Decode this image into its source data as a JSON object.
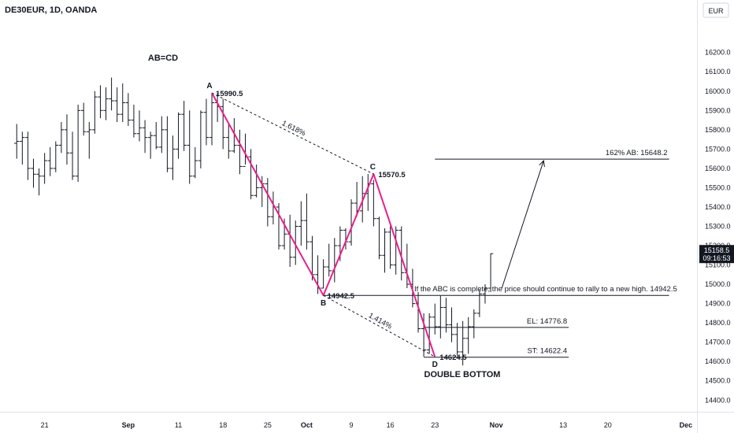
{
  "header": {
    "symbol": "DE30EUR, 1D, OANDA",
    "currency": "EUR"
  },
  "price_tag": {
    "price": "15158.5",
    "countdown": "09:16:53",
    "value": 15158.5,
    "color": "#131722"
  },
  "colors": {
    "pattern_line": "#e91e8c",
    "bar": "#131722",
    "grid_axis": "#e0e3eb",
    "text": "#131722"
  },
  "chart_data": {
    "type": "ohlc",
    "ylim": [
      14340,
      16370
    ],
    "xlim": [
      -3,
      122
    ],
    "y_ticks": [
      14400,
      14500,
      14600,
      14700,
      14800,
      14900,
      15000,
      15100,
      15200,
      15300,
      15400,
      15500,
      15600,
      15700,
      15800,
      15900,
      16000,
      16100,
      16200
    ],
    "y_tick_labels": [
      "14400.0",
      "14500.0",
      "14600.0",
      "14700.0",
      "14800.0",
      "14900.0",
      "15000.0",
      "15100.0",
      "15200.0",
      "15300.0",
      "15400.0",
      "15500.0",
      "15600.0",
      "15700.0",
      "15800.0",
      "15900.0",
      "16000.0",
      "16100.0",
      "16200.0"
    ],
    "x_ticks": [
      {
        "label": "21",
        "i": 5
      },
      {
        "label": "Sep",
        "i": 20
      },
      {
        "label": "11",
        "i": 29
      },
      {
        "label": "18",
        "i": 37
      },
      {
        "label": "25",
        "i": 45
      },
      {
        "label": "Oct",
        "i": 52
      },
      {
        "label": "9",
        "i": 60
      },
      {
        "label": "16",
        "i": 67
      },
      {
        "label": "23",
        "i": 75
      },
      {
        "label": "Nov",
        "i": 86
      },
      {
        "label": "13",
        "i": 98
      },
      {
        "label": "20",
        "i": 106
      },
      {
        "label": "Dec",
        "i": 120
      }
    ],
    "ohlc": [
      [
        15730,
        15830,
        15650,
        15740
      ],
      [
        15740,
        15790,
        15620,
        15760
      ],
      [
        15760,
        15790,
        15540,
        15600
      ],
      [
        15600,
        15650,
        15500,
        15570
      ],
      [
        15570,
        15600,
        15460,
        15560
      ],
      [
        15560,
        15680,
        15520,
        15640
      ],
      [
        15640,
        15710,
        15560,
        15600
      ],
      [
        15600,
        15740,
        15580,
        15720
      ],
      [
        15720,
        15840,
        15680,
        15800
      ],
      [
        15800,
        15880,
        15620,
        15680
      ],
      [
        15680,
        15790,
        15540,
        15560
      ],
      [
        15560,
        15930,
        15530,
        15900
      ],
      [
        15900,
        15940,
        15770,
        15790
      ],
      [
        15790,
        15840,
        15650,
        15800
      ],
      [
        15800,
        16000,
        15780,
        15970
      ],
      [
        15970,
        16030,
        15860,
        15900
      ],
      [
        15900,
        16020,
        15850,
        15960
      ],
      [
        15960,
        16070,
        15900,
        15950
      ],
      [
        15950,
        16020,
        15840,
        15880
      ],
      [
        15880,
        16040,
        15840,
        15940
      ],
      [
        15940,
        15990,
        15820,
        15850
      ],
      [
        15850,
        15930,
        15760,
        15780
      ],
      [
        15780,
        15900,
        15740,
        15810
      ],
      [
        15810,
        15850,
        15680,
        15760
      ],
      [
        15760,
        15790,
        15650,
        15770
      ],
      [
        15770,
        15840,
        15700,
        15710
      ],
      [
        15710,
        15870,
        15680,
        15800
      ],
      [
        15800,
        15870,
        15580,
        15600
      ],
      [
        15600,
        15770,
        15540,
        15700
      ],
      [
        15700,
        15890,
        15650,
        15880
      ],
      [
        15880,
        15950,
        15690,
        15720
      ],
      [
        15720,
        15900,
        15520,
        15560
      ],
      [
        15560,
        15710,
        15550,
        15640
      ],
      [
        15640,
        15900,
        15600,
        15890
      ],
      [
        15890,
        15960,
        15720,
        15760
      ],
      [
        15760,
        15990,
        15720,
        15940
      ],
      [
        15940,
        15990,
        15840,
        15920
      ],
      [
        15920,
        15960,
        15700,
        15760
      ],
      [
        15760,
        15830,
        15650,
        15690
      ],
      [
        15690,
        15860,
        15680,
        15720
      ],
      [
        15720,
        15800,
        15570,
        15610
      ],
      [
        15610,
        15780,
        15620,
        15660
      ],
      [
        15660,
        15700,
        15440,
        15460
      ],
      [
        15460,
        15620,
        15450,
        15500
      ],
      [
        15500,
        15560,
        15400,
        15520
      ],
      [
        15520,
        15550,
        15300,
        15350
      ],
      [
        15350,
        15480,
        15310,
        15400
      ],
      [
        15400,
        15420,
        15180,
        15200
      ],
      [
        15200,
        15340,
        15180,
        15260
      ],
      [
        15260,
        15360,
        15090,
        15140
      ],
      [
        15140,
        15330,
        15100,
        15300
      ],
      [
        15300,
        15430,
        15200,
        15330
      ],
      [
        15330,
        15470,
        15180,
        15220
      ],
      [
        15220,
        15250,
        15020,
        15050
      ],
      [
        15050,
        15150,
        14950,
        14980
      ],
      [
        14980,
        15130,
        14980,
        15090
      ],
      [
        15090,
        15210,
        15040,
        15070
      ],
      [
        15070,
        15240,
        15010,
        15200
      ],
      [
        15200,
        15300,
        15120,
        15280
      ],
      [
        15280,
        15290,
        15180,
        15220
      ],
      [
        15220,
        15440,
        15200,
        15420
      ],
      [
        15420,
        15530,
        15350,
        15380
      ],
      [
        15380,
        15560,
        15320,
        15470
      ],
      [
        15470,
        15571,
        15380,
        15520
      ],
      [
        15520,
        15540,
        15300,
        15340
      ],
      [
        15340,
        15350,
        15130,
        15150
      ],
      [
        15150,
        15290,
        15060,
        15270
      ],
      [
        15270,
        15300,
        15080,
        15100
      ],
      [
        15100,
        15300,
        15050,
        15280
      ],
      [
        15280,
        15300,
        15020,
        15060
      ],
      [
        15060,
        15210,
        14980,
        15000
      ],
      [
        15000,
        15080,
        14880,
        14900
      ],
      [
        14900,
        14960,
        14750,
        14770
      ],
      [
        14770,
        14850,
        14625,
        14660
      ],
      [
        14660,
        14850,
        14640,
        14830
      ],
      [
        14830,
        14900,
        14740,
        14780
      ],
      [
        14780,
        14940,
        14720,
        14880
      ],
      [
        14880,
        14930,
        14750,
        14790
      ],
      [
        14790,
        14880,
        14700,
        14740
      ],
      [
        14740,
        14800,
        14630,
        14650
      ],
      [
        14650,
        14810,
        14580,
        14720
      ],
      [
        14720,
        14830,
        14640,
        14780
      ],
      [
        14780,
        14870,
        14720,
        14850
      ],
      [
        14850,
        14970,
        14830,
        14950
      ],
      [
        14950,
        15000,
        14900,
        14980
      ],
      [
        14980,
        15160,
        14960,
        15158.5
      ]
    ],
    "pattern": {
      "title": "AB=CD",
      "points": [
        {
          "name": "A",
          "i": 35,
          "price": 15990.5,
          "price_label": "15990.5"
        },
        {
          "name": "B",
          "i": 55,
          "price": 14942.5,
          "price_label": "14942.5"
        },
        {
          "name": "C",
          "i": 64,
          "price": 15570.5,
          "price_label": "15570.5"
        },
        {
          "name": "D",
          "i": 75,
          "price": 14624.5,
          "price_label": "14624.5"
        }
      ],
      "ratios": [
        "1.618%",
        "1.414%"
      ]
    },
    "levels": [
      {
        "label": "162% AB: 15648.2",
        "price": 15648.2,
        "i_start": 75,
        "i_end": 117
      },
      {
        "label": "If the ABC is complete, the price should continue to rally to a new high. 14942.5",
        "price": 14942.5,
        "i_start": 55,
        "i_end": 117
      },
      {
        "label": "EL: 14776.8",
        "price": 14776.8,
        "i_start": 73,
        "i_end": 99
      },
      {
        "label": "ST: 14622.4",
        "price": 14622.4,
        "i_start": 73,
        "i_end": 99
      }
    ],
    "double_bottom_label": "DOUBLE BOTTOM",
    "projection_arrow": {
      "from_i": 87,
      "from_price": 14980,
      "to_i": 94.5,
      "to_price": 15640
    }
  }
}
